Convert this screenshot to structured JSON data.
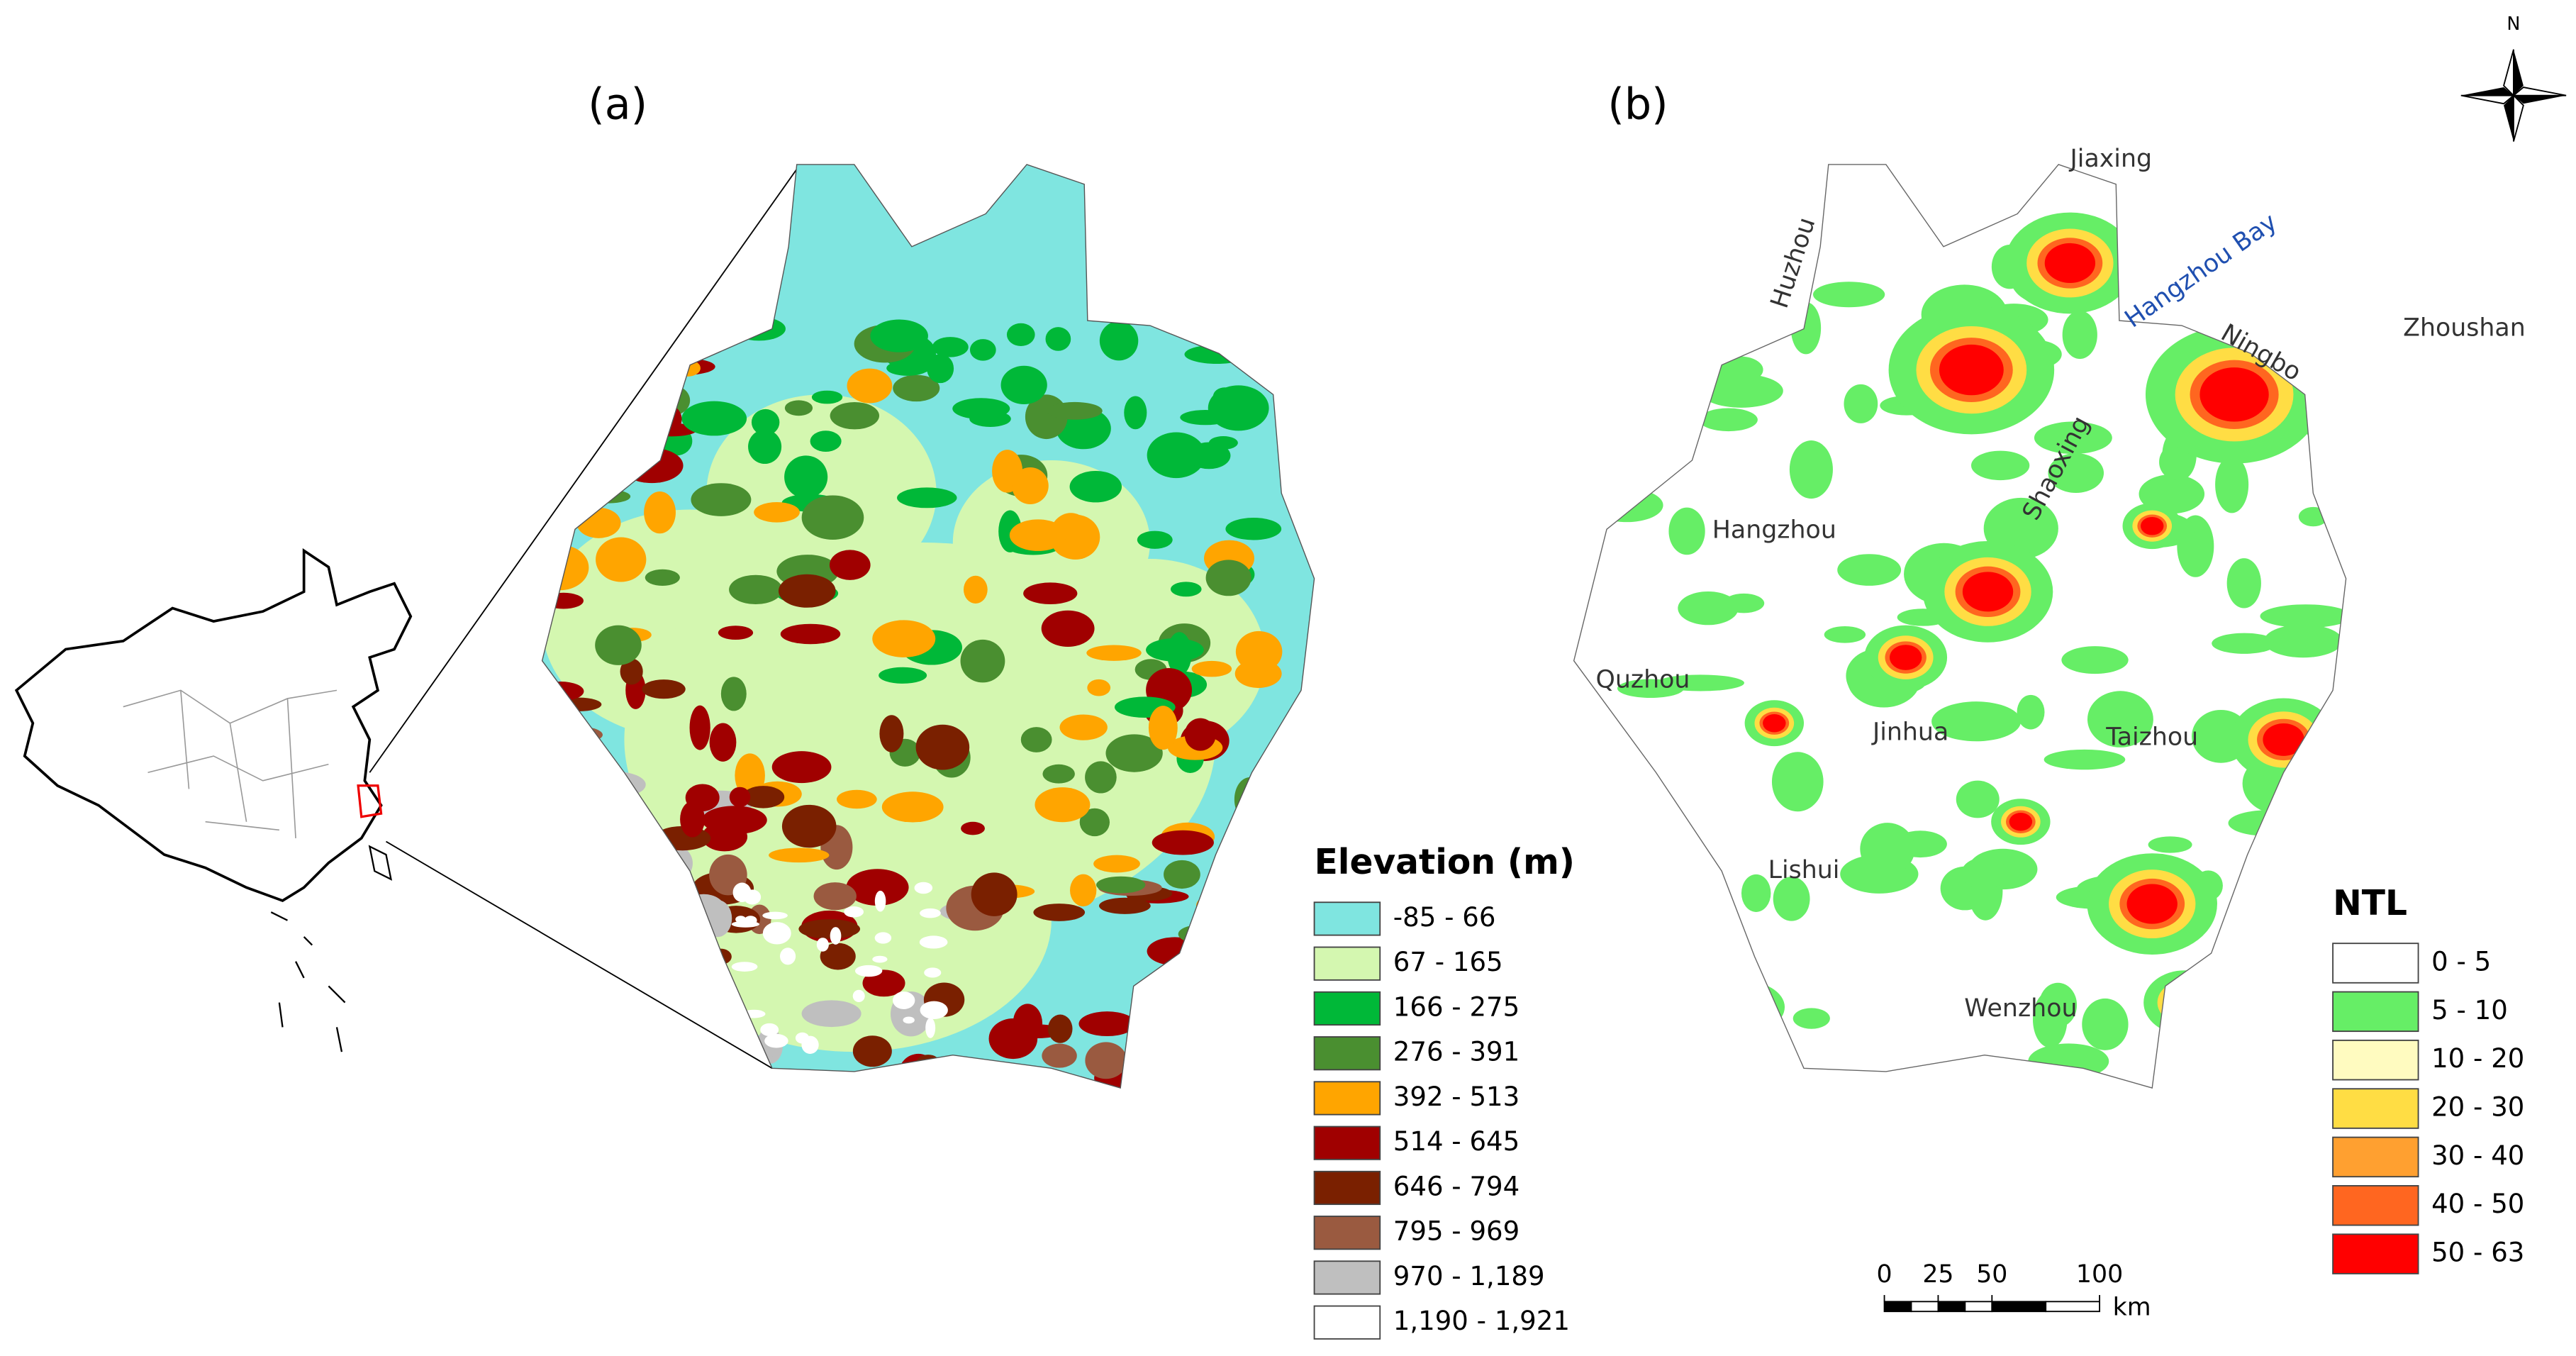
{
  "panels": [
    {
      "label": "(a)",
      "legend_title": "Elevation (m)",
      "legend": [
        {
          "label": "-85 - 66",
          "color": "#7fe5e0"
        },
        {
          "label": "67 - 165",
          "color": "#d4f7b0"
        },
        {
          "label": "166 - 275",
          "color": "#00b838"
        },
        {
          "label": "276 - 391",
          "color": "#4a8f30"
        },
        {
          "label": "392 - 513",
          "color": "#ffa500"
        },
        {
          "label": "514 - 645",
          "color": "#a00000"
        },
        {
          "label": "646 - 794",
          "color": "#7a2000"
        },
        {
          "label": "795 - 969",
          "color": "#9a5a40"
        },
        {
          "label": "970 - 1,189",
          "color": "#bfbfbf"
        },
        {
          "label": "1,190 - 1,921",
          "color": "#ffffff"
        }
      ]
    },
    {
      "label": "(b)",
      "legend_title": "NTL",
      "legend": [
        {
          "label": "0 - 5",
          "color": "#ffffff"
        },
        {
          "label": "5 - 10",
          "color": "#66ee66"
        },
        {
          "label": "10 - 20",
          "color": "#fffbc0"
        },
        {
          "label": "20 - 30",
          "color": "#ffdd44"
        },
        {
          "label": "30 - 40",
          "color": "#ffa030"
        },
        {
          "label": "40 - 50",
          "color": "#ff6620"
        },
        {
          "label": "50 - 63",
          "color": "#ff0000"
        }
      ],
      "places": [
        "Jiaxing",
        "Huzhou",
        "Hangzhou Bay",
        "Ningbo",
        "Zhoushan",
        "Hangzhou",
        "Shaoxing",
        "Quzhou",
        "Jinhua",
        "Taizhou",
        "Lishui",
        "Wenzhou"
      ]
    }
  ],
  "scale_bar": {
    "ticks": [
      0,
      25,
      50,
      100
    ],
    "unit": "km"
  },
  "north_label": "N"
}
